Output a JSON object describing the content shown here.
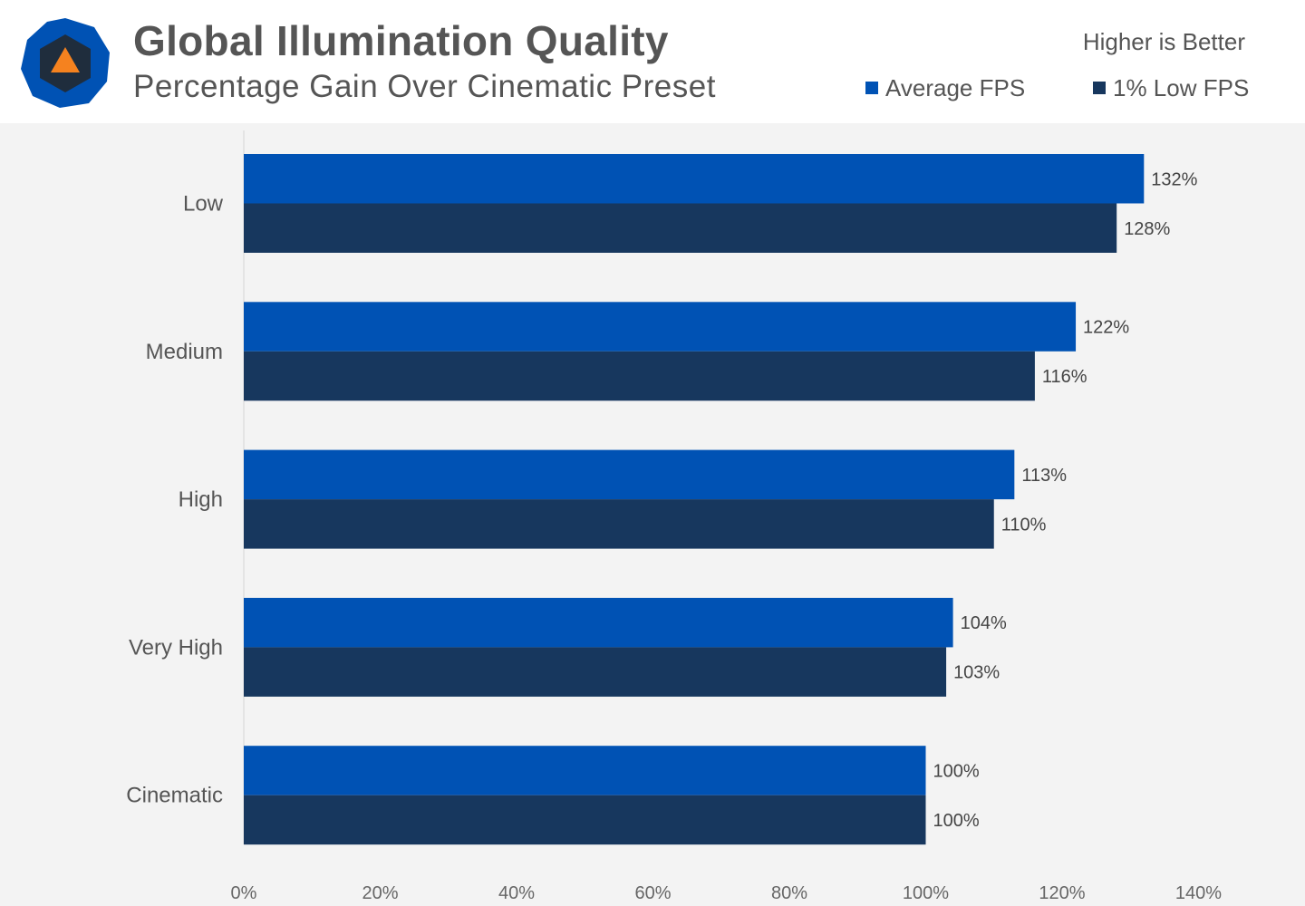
{
  "header": {
    "title": "Global Illumination Quality",
    "subtitle": "Percentage Gain Over Cinematic Preset",
    "note": "Higher is Better",
    "logo_icon": "hexagon-triangle-logo-icon"
  },
  "colors": {
    "avg": "#0052b4",
    "low": "#17375e",
    "background": "#f3f3f3",
    "logo_outer": "#0052b4",
    "logo_inner": "#1f2d3d",
    "logo_triangle": "#f5821f"
  },
  "chart_data": {
    "type": "bar",
    "orientation": "horizontal",
    "title": "Global Illumination Quality",
    "subtitle": "Percentage Gain Over Cinematic Preset",
    "categories": [
      "Low",
      "Medium",
      "High",
      "Very High",
      "Cinematic"
    ],
    "series": [
      {
        "name": "Average FPS",
        "values": [
          132,
          122,
          113,
          104,
          100
        ]
      },
      {
        "name": "1% Low FPS",
        "values": [
          128,
          116,
          110,
          103,
          100
        ]
      }
    ],
    "value_labels": [
      [
        "132%",
        "122%",
        "113%",
        "104%",
        "100%"
      ],
      [
        "128%",
        "116%",
        "110%",
        "103%",
        "100%"
      ]
    ],
    "xlim": [
      0,
      140
    ],
    "xticks": [
      0,
      20,
      40,
      60,
      80,
      100,
      120,
      140
    ],
    "xtick_labels": [
      "0%",
      "20%",
      "40%",
      "60%",
      "80%",
      "100%",
      "120%",
      "140%"
    ],
    "legend_position": "top-right",
    "grid": false
  }
}
